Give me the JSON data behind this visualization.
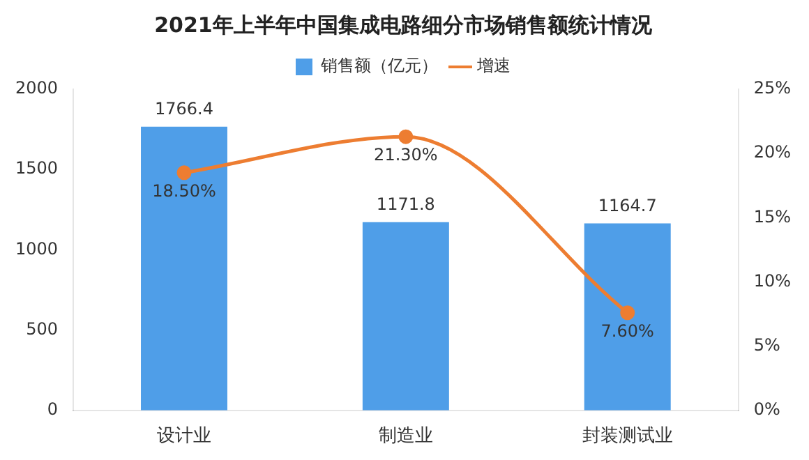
{
  "chart_data": {
    "type": "bar",
    "title": "2021年上半年中国集成电路细分市场销售额统计情况",
    "categories": [
      "设计业",
      "制造业",
      "封装测试业"
    ],
    "series": [
      {
        "name": "销售额（亿元）",
        "color": "#4f9ee8",
        "values": [
          1766.4,
          1171.8,
          1164.7
        ],
        "value_labels": [
          "1766.4",
          "1171.8",
          "1164.7"
        ]
      },
      {
        "name": "增速",
        "type": "line",
        "axis": "y2",
        "color": "#ed7d31",
        "values": [
          18.5,
          21.3,
          7.6
        ],
        "value_labels": [
          "18.50%",
          "21.30%",
          "7.60%"
        ]
      }
    ],
    "ylim": [
      0,
      2000
    ],
    "yticks": [
      0,
      500,
      1000,
      1500,
      2000
    ],
    "y2lim": [
      0,
      25
    ],
    "y2ticks": [
      {
        "value": 0,
        "label": "0%"
      },
      {
        "value": 5,
        "label": "5%"
      },
      {
        "value": 10,
        "label": "10%"
      },
      {
        "value": 15,
        "label": "15%"
      },
      {
        "value": 20,
        "label": "20%"
      },
      {
        "value": 25,
        "label": "25%"
      }
    ],
    "grid": false,
    "legend": "top",
    "marker": "circle",
    "line_style": "solid"
  }
}
